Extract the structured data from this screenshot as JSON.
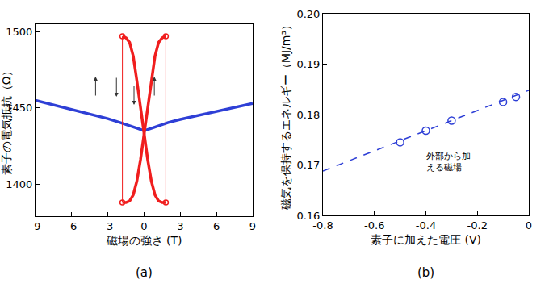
{
  "chart_data": [
    {
      "type": "line",
      "label": "(a)",
      "x_label": "磁場の強さ (T)",
      "y_label": "素子の電気抵抗（Ω）",
      "xlim": [
        -9,
        9
      ],
      "xticks": [
        -9,
        -6,
        -3,
        0,
        3,
        6,
        9
      ],
      "ylim": [
        1379,
        1505
      ],
      "yticks": [
        1400,
        1450,
        1500
      ],
      "grid": false,
      "series": [
        {
          "color": "#2e3fd6",
          "marker": "none",
          "line_style": "solid",
          "x": [
            -9,
            -7,
            -5,
            -3,
            -2,
            -1,
            -0.5,
            0,
            0.5,
            1,
            2,
            3,
            5,
            7,
            9
          ],
          "values": [
            1455,
            1451,
            1447,
            1443,
            1440.5,
            1438,
            1436.5,
            1435,
            1436.5,
            1438,
            1440.5,
            1442.5,
            1446,
            1449.5,
            1453
          ]
        },
        {
          "color": "#f01e1e",
          "marker": "none",
          "line_style": "solid",
          "x": [
            -1.8,
            -1.5,
            -1.2,
            -0.9,
            -0.6,
            -0.3,
            0,
            0.3,
            0.6,
            0.9,
            1.2,
            1.5,
            1.8
          ],
          "values": [
            1497,
            1496,
            1493,
            1484,
            1468,
            1450,
            1433,
            1416,
            1402,
            1393,
            1389,
            1388,
            1388
          ]
        },
        {
          "color": "#f01e1e",
          "marker": "none",
          "line_style": "solid",
          "x": [
            -1.8,
            -1.5,
            -1.2,
            -0.9,
            -0.6,
            -0.3,
            0,
            0.3,
            0.6,
            0.9,
            1.2,
            1.5,
            1.8
          ],
          "values": [
            1388,
            1388,
            1389,
            1393,
            1402,
            1416,
            1433,
            1450,
            1468,
            1484,
            1493,
            1496,
            1497
          ]
        },
        {
          "color": "#f01e1e",
          "marker": "open circle",
          "line_style": "solid",
          "x": [
            -1.8,
            -1.8,
            null,
            1.8,
            1.8
          ],
          "values": [
            1497,
            1388,
            null,
            1497,
            1388
          ]
        }
      ]
    },
    {
      "type": "scatter",
      "label": "(b)",
      "x_label": "素子に加えた電圧 (V)",
      "y_label": "磁気を保持するエネルギー（MJ/m³）",
      "xlim": [
        -0.8,
        0
      ],
      "xticks": [
        -0.8,
        -0.6,
        -0.4,
        -0.2,
        0
      ],
      "ylim": [
        0.16,
        0.2
      ],
      "yticks": [
        {
          "value": 0.16,
          "label": "0.16"
        },
        {
          "value": 0.17,
          "label": "0.17"
        },
        {
          "value": 0.18,
          "label": "0.18"
        },
        {
          "value": 0.19,
          "label": "0.19"
        },
        {
          "value": 0.2,
          "label": "0.20"
        }
      ],
      "grid": false,
      "annotations": [
        [
          "外部から加",
          "える磁場"
        ]
      ],
      "series": [
        {
          "color": "#2e3fd6",
          "marker": "open circle",
          "line_style": "none",
          "x": [
            -0.5,
            -0.4,
            -0.3,
            -0.1,
            -0.05
          ],
          "values": [
            0.1745,
            0.1768,
            0.1788,
            0.1825,
            0.1835
          ]
        },
        {
          "color": "#2e3fd6",
          "marker": "none",
          "line_style": "dashed",
          "x": [
            -0.8,
            0
          ],
          "values": [
            0.1688,
            0.1848
          ]
        }
      ]
    }
  ]
}
